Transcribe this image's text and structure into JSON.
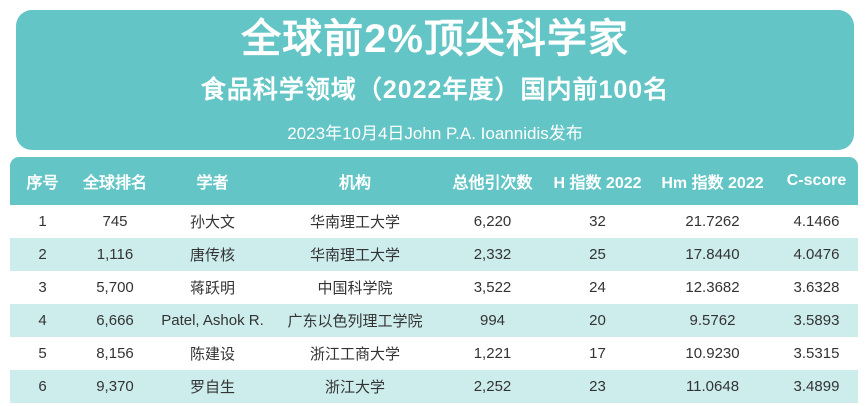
{
  "banner": {
    "title": "全球前2%顶尖科学家",
    "subtitle": "食品科学领域（2022年度）国内前100名",
    "published": "2023年10月4日John P.A. Ioannidis发布"
  },
  "colors": {
    "teal": "#63c5c5",
    "light_row": "#cdeded",
    "header_text": "#ffffff",
    "body_text": "#333333",
    "background": "#ffffff"
  },
  "table": {
    "columns": [
      "序号",
      "全球排名",
      "学者",
      "机构",
      "总他引次数",
      "H 指数 2022",
      "Hm 指数 2022",
      "C-score"
    ],
    "rows": [
      [
        "1",
        "745",
        "孙大文",
        "华南理工大学",
        "6,220",
        "32",
        "21.7262",
        "4.1466"
      ],
      [
        "2",
        "1,116",
        "唐传核",
        "华南理工大学",
        "2,332",
        "25",
        "17.8440",
        "4.0476"
      ],
      [
        "3",
        "5,700",
        "蒋跃明",
        "中国科学院",
        "3,522",
        "24",
        "12.3682",
        "3.6328"
      ],
      [
        "4",
        "6,666",
        "Patel, Ashok R.",
        "广东以色列理工学院",
        "994",
        "20",
        "9.5762",
        "3.5893"
      ],
      [
        "5",
        "8,156",
        "陈建设",
        "浙江工商大学",
        "1,221",
        "17",
        "10.9230",
        "3.5315"
      ],
      [
        "6",
        "9,370",
        "罗自生",
        "浙江大学",
        "2,252",
        "23",
        "11.0648",
        "3.4899"
      ]
    ]
  }
}
